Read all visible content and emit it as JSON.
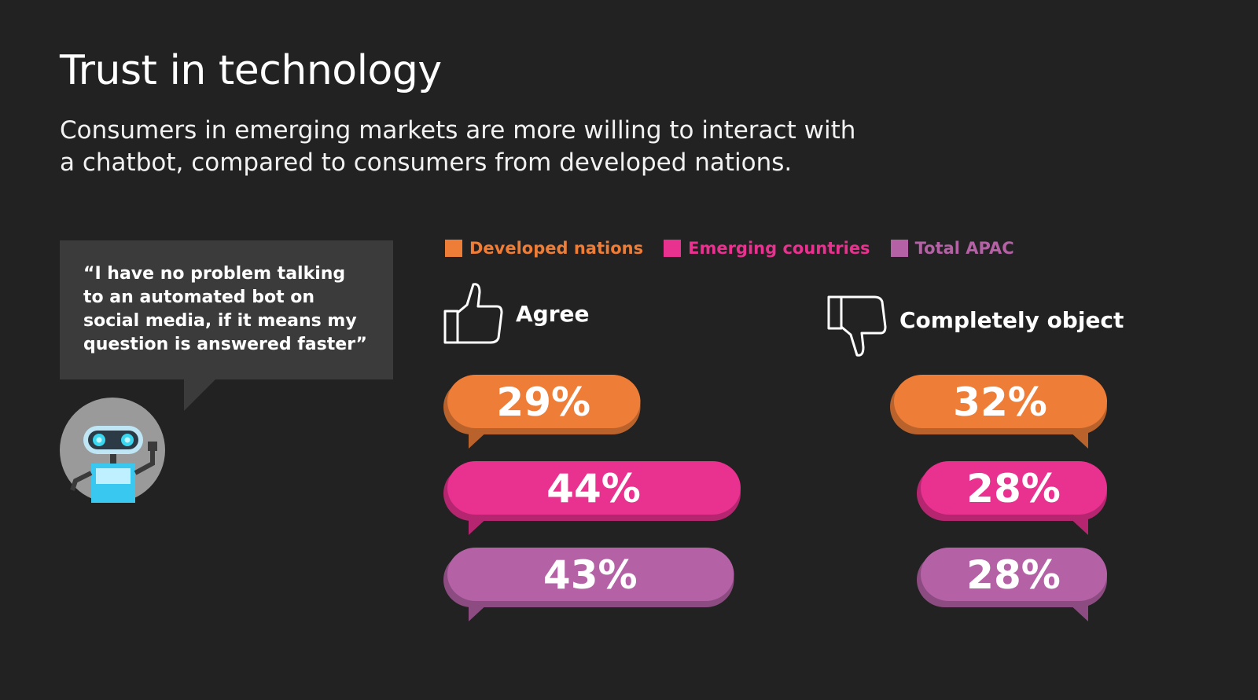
{
  "title": "Trust in technology",
  "subtitle": "Consumers in emerging markets are more willing to interact with\na chatbot,  compared to consumers from developed nations.",
  "quote": "“I have no problem talking\n  to an automated bot on\n  social media, if it means my\n  question is answered faster”",
  "icons": {
    "robot": "robot-avatar-icon",
    "agree": "thumbs-up-icon",
    "object": "thumbs-down-icon"
  },
  "chart_data": {
    "type": "bar",
    "categories": [
      "Agree",
      "Completely object"
    ],
    "unit": "%",
    "legend_position": "top",
    "series": [
      {
        "name": "Developed nations",
        "color": "#ee7d38",
        "values": [
          29,
          32
        ]
      },
      {
        "name": "Emerging countries",
        "color": "#e9318f",
        "values": [
          44,
          28
        ]
      },
      {
        "name": "Total APAC",
        "color": "#b462a5",
        "values": [
          43,
          28
        ]
      }
    ]
  }
}
